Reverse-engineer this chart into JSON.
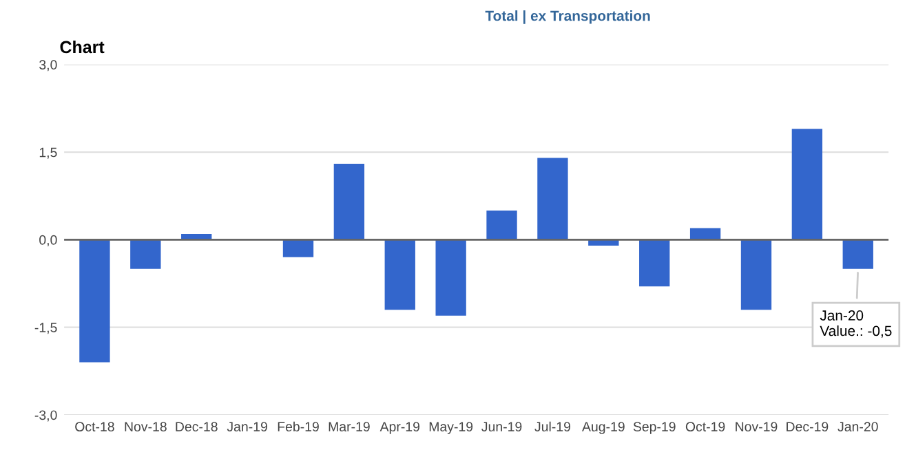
{
  "chart_data": {
    "type": "bar",
    "title": "Chart",
    "categories": [
      "Oct-18",
      "Nov-18",
      "Dec-18",
      "Jan-19",
      "Feb-19",
      "Mar-19",
      "Apr-19",
      "May-19",
      "Jun-19",
      "Jul-19",
      "Aug-19",
      "Sep-19",
      "Oct-19",
      "Nov-19",
      "Dec-19",
      "Jan-20"
    ],
    "values": [
      -2.1,
      -0.5,
      0.1,
      0,
      -0.3,
      1.3,
      -1.2,
      -1.3,
      0.5,
      1.4,
      -0.1,
      -0.8,
      0.2,
      -1.2,
      1.9,
      -0.5
    ],
    "color": "#3366cc",
    "ylim": [
      -3,
      3
    ],
    "yticks": [
      {
        "value": -3,
        "label": "-3,0"
      },
      {
        "value": -1.5,
        "label": "-1,5"
      },
      {
        "value": 0,
        "label": "0,0"
      },
      {
        "value": 1.5,
        "label": "1,5"
      },
      {
        "value": 3,
        "label": "3,0"
      }
    ],
    "grid": "y",
    "ref_lines": [
      {
        "axis": "y",
        "value": 0,
        "label": null,
        "color": "#666666"
      }
    ],
    "annotations": [
      "Total | ex Transportation",
      {
        "text": "Jan-20\nValue.: -0,5",
        "x": "Jan-20",
        "y": -0.5
      }
    ]
  }
}
